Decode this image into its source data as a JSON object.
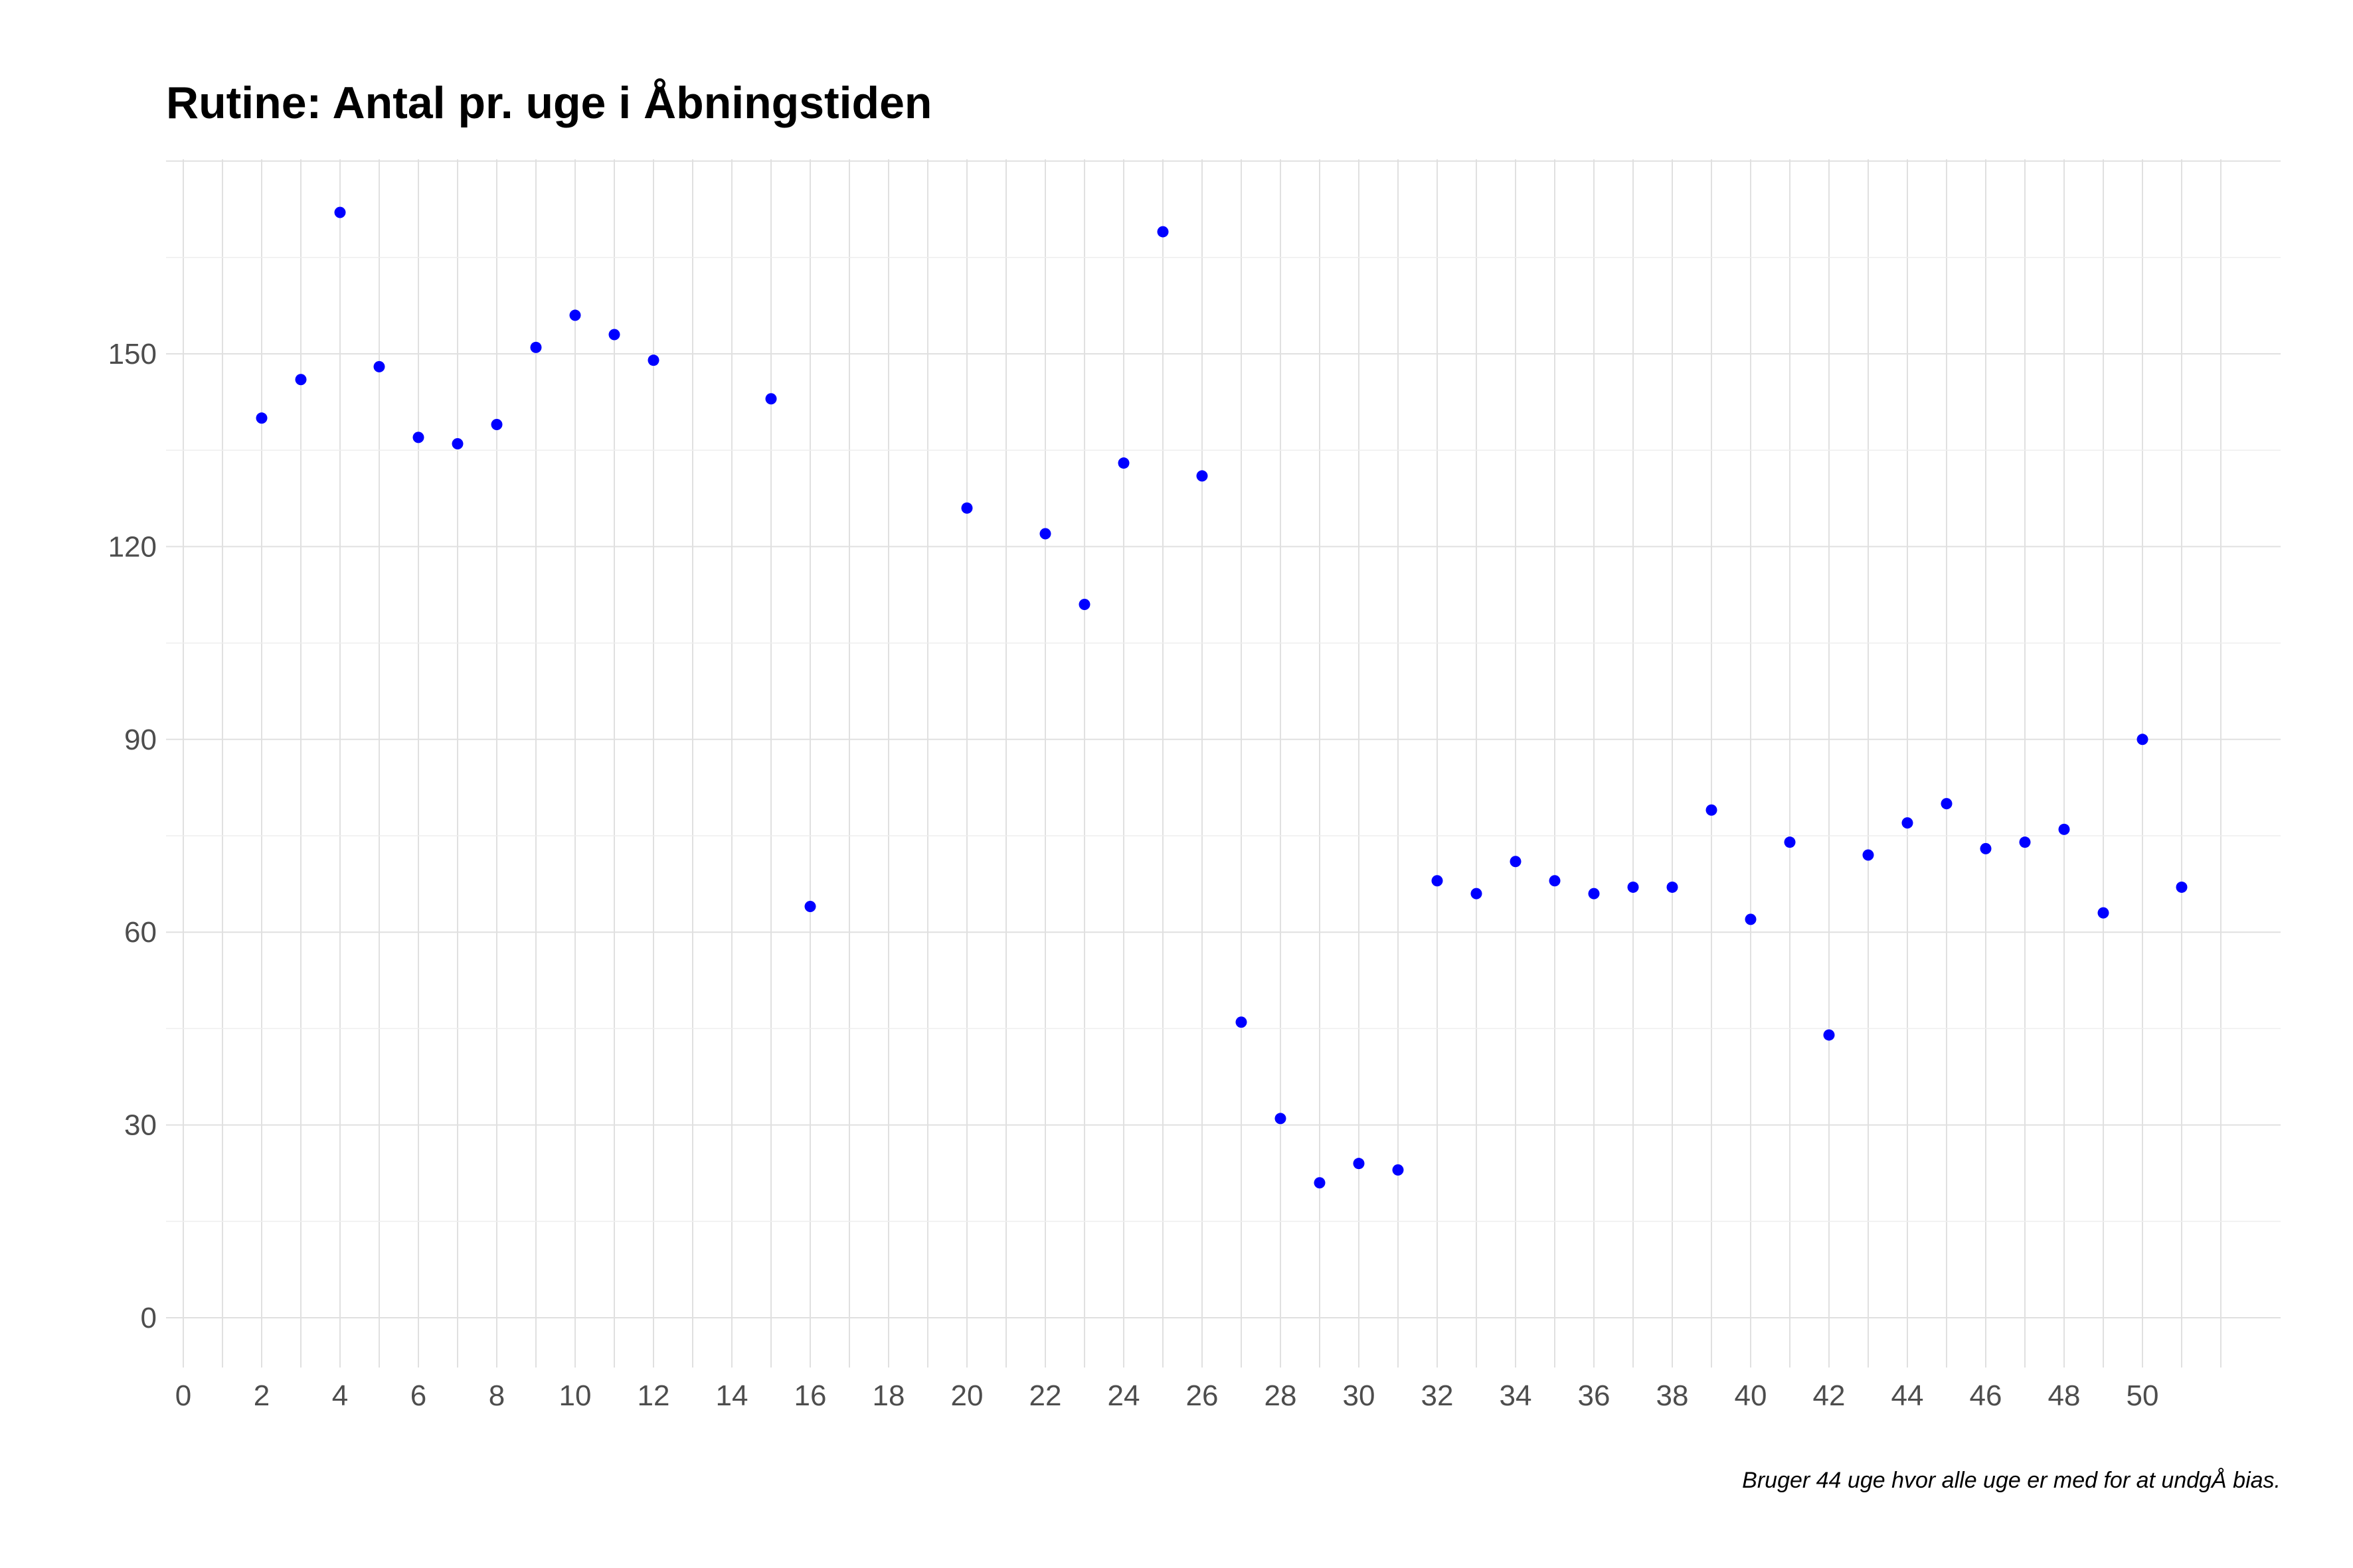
{
  "chart_data": {
    "type": "scatter",
    "title": "Rutine: Antal pr. uge i Åbningstiden",
    "caption": "Bruger 44 uge hvor alle uge er med for at undgÅ bias.",
    "xlabel": "",
    "ylabel": "",
    "xlim": [
      0,
      52
    ],
    "ylim": [
      -8,
      180
    ],
    "x_ticks": [
      0,
      2,
      4,
      6,
      8,
      10,
      12,
      14,
      16,
      18,
      20,
      22,
      24,
      26,
      28,
      30,
      32,
      34,
      36,
      38,
      40,
      42,
      44,
      46,
      48,
      50
    ],
    "y_ticks": [
      0,
      30,
      60,
      90,
      120,
      150
    ],
    "grid": true,
    "point_color": "#0000ff",
    "points": [
      {
        "x": 2,
        "y": 140
      },
      {
        "x": 3,
        "y": 146
      },
      {
        "x": 4,
        "y": 172
      },
      {
        "x": 5,
        "y": 148
      },
      {
        "x": 6,
        "y": 137
      },
      {
        "x": 7,
        "y": 136
      },
      {
        "x": 8,
        "y": 139
      },
      {
        "x": 9,
        "y": 151
      },
      {
        "x": 10,
        "y": 156
      },
      {
        "x": 11,
        "y": 153
      },
      {
        "x": 12,
        "y": 149
      },
      {
        "x": 15,
        "y": 143
      },
      {
        "x": 16,
        "y": 64
      },
      {
        "x": 20,
        "y": 126
      },
      {
        "x": 22,
        "y": 122
      },
      {
        "x": 23,
        "y": 111
      },
      {
        "x": 24,
        "y": 133
      },
      {
        "x": 25,
        "y": 169
      },
      {
        "x": 26,
        "y": 131
      },
      {
        "x": 27,
        "y": 46
      },
      {
        "x": 28,
        "y": 31
      },
      {
        "x": 29,
        "y": 21
      },
      {
        "x": 30,
        "y": 24
      },
      {
        "x": 31,
        "y": 23
      },
      {
        "x": 32,
        "y": 68
      },
      {
        "x": 33,
        "y": 66
      },
      {
        "x": 34,
        "y": 71
      },
      {
        "x": 35,
        "y": 68
      },
      {
        "x": 36,
        "y": 66
      },
      {
        "x": 37,
        "y": 67
      },
      {
        "x": 38,
        "y": 67
      },
      {
        "x": 39,
        "y": 79
      },
      {
        "x": 40,
        "y": 62
      },
      {
        "x": 41,
        "y": 74
      },
      {
        "x": 42,
        "y": 44
      },
      {
        "x": 43,
        "y": 72
      },
      {
        "x": 44,
        "y": 77
      },
      {
        "x": 45,
        "y": 80
      },
      {
        "x": 46,
        "y": 73
      },
      {
        "x": 47,
        "y": 74
      },
      {
        "x": 48,
        "y": 76
      },
      {
        "x": 49,
        "y": 63
      },
      {
        "x": 50,
        "y": 90
      },
      {
        "x": 51,
        "y": 67
      }
    ]
  }
}
